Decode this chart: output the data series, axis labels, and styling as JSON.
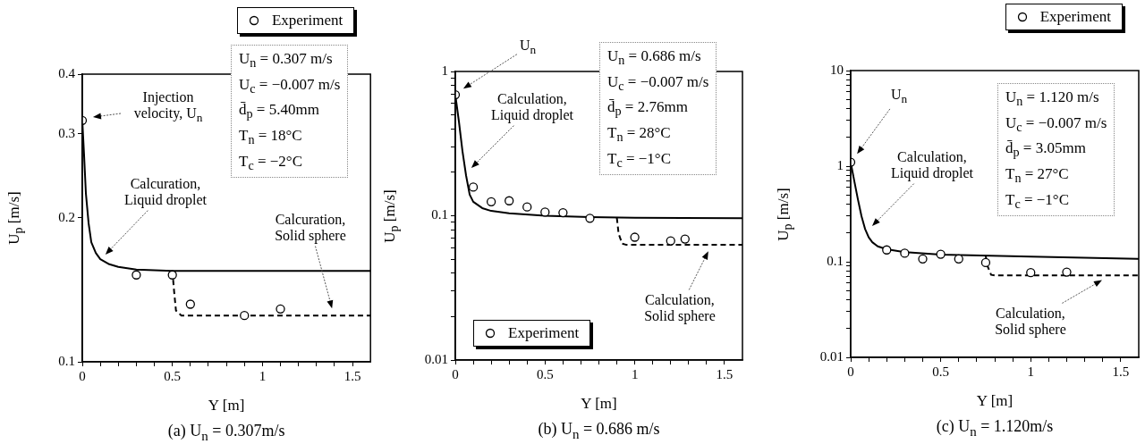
{
  "chart_data": [
    {
      "type": "scatter",
      "title": "(a)    U$_{n}$ = 0.307m/s",
      "xlabel": "Y [m]",
      "ylabel": "U$_{p}$  [m/s]",
      "log": "y",
      "grid": false,
      "legend": "top right",
      "xlim": [
        0,
        1.6
      ],
      "xticks": [
        0,
        {
          "value": 0.1,
          "label": null
        },
        {
          "value": 0.2,
          "label": null
        },
        {
          "value": 0.3,
          "label": null
        },
        {
          "value": 0.4,
          "label": null
        },
        0.5,
        {
          "value": 0.6,
          "label": null
        },
        {
          "value": 0.7,
          "label": null
        },
        {
          "value": 0.8,
          "label": null
        },
        {
          "value": 0.9,
          "label": null
        },
        1,
        {
          "value": 1.1,
          "label": null
        },
        {
          "value": 1.2,
          "label": null
        },
        {
          "value": 1.3,
          "label": null
        },
        {
          "value": 1.4,
          "label": null
        },
        1.5
      ],
      "ylim": [
        0.1,
        0.4
      ],
      "yticks": [
        0.1,
        0.2,
        0.3,
        0.4
      ],
      "series": [
        {
          "name": "Experiment",
          "type": "scatter",
          "marker": "circle",
          "color": "#000000",
          "x": [
            0,
            0.3,
            0.5,
            0.6,
            0.9,
            1.1
          ],
          "values": [
            0.32,
            0.152,
            0.152,
            0.132,
            0.125,
            0.129
          ]
        },
        {
          "type": "line",
          "color": "#000000",
          "line_style": "solid",
          "x": [
            0,
            0.01,
            0.02,
            0.035,
            0.05,
            0.075,
            0.1,
            0.15,
            0.2,
            0.3,
            0.5,
            0.8,
            1.6
          ],
          "values": [
            0.32,
            0.27,
            0.225,
            0.195,
            0.178,
            0.169,
            0.164,
            0.16,
            0.158,
            0.156,
            0.155,
            0.155,
            0.155
          ]
        },
        {
          "type": "line",
          "color": "#000000",
          "line_style": "dashed",
          "x": [
            0.5,
            0.51,
            0.52,
            0.55,
            0.7,
            1.6
          ],
          "values": [
            0.155,
            0.14,
            0.128,
            0.125,
            0.125,
            0.125
          ]
        }
      ],
      "annotations": [
        "Injection velocity, U$_{n}$",
        "Calcuration, Liquid droplet",
        "Calcuration, Solid sphere",
        "U$_{n}$ = 0.307 m/s",
        "U$_{c}$ = −0.007 m/s",
        "d̄$_{p}$ = 5.40mm",
        "T$_{n}$ = 18°C",
        "T$_{c}$ = −2°C"
      ]
    },
    {
      "type": "scatter",
      "title": "(b)    U$_{n}$ = 0.686 m/s",
      "xlabel": "Y [m]",
      "ylabel": "U$_{p}$  [m/s]",
      "log": "y",
      "grid": false,
      "legend": "bottom left",
      "xlim": [
        0,
        1.6
      ],
      "xticks": [
        0,
        {
          "value": 0.1,
          "label": null
        },
        {
          "value": 0.2,
          "label": null
        },
        {
          "value": 0.3,
          "label": null
        },
        {
          "value": 0.4,
          "label": null
        },
        0.5,
        {
          "value": 0.6,
          "label": null
        },
        {
          "value": 0.7,
          "label": null
        },
        {
          "value": 0.8,
          "label": null
        },
        {
          "value": 0.9,
          "label": null
        },
        1,
        {
          "value": 1.1,
          "label": null
        },
        {
          "value": 1.2,
          "label": null
        },
        {
          "value": 1.3,
          "label": null
        },
        {
          "value": 1.4,
          "label": null
        },
        1.5
      ],
      "ylim": [
        0.01,
        1
      ],
      "yticks": [
        0.01,
        {
          "value": 0.02,
          "label": null
        },
        {
          "value": 0.03,
          "label": null
        },
        {
          "value": 0.04,
          "label": null
        },
        {
          "value": 0.05,
          "label": null
        },
        {
          "value": 0.06,
          "label": null
        },
        {
          "value": 0.07,
          "label": null
        },
        {
          "value": 0.08,
          "label": null
        },
        {
          "value": 0.09,
          "label": null
        },
        0.1,
        {
          "value": 0.2,
          "label": null
        },
        {
          "value": 0.3,
          "label": null
        },
        {
          "value": 0.4,
          "label": null
        },
        {
          "value": 0.5,
          "label": null
        },
        {
          "value": 0.6,
          "label": null
        },
        {
          "value": 0.7,
          "label": null
        },
        {
          "value": 0.8,
          "label": null
        },
        {
          "value": 0.9,
          "label": null
        },
        1
      ],
      "series": [
        {
          "name": "Experiment",
          "type": "scatter",
          "marker": "circle",
          "color": "#000000",
          "x": [
            0,
            0.1,
            0.2,
            0.3,
            0.4,
            0.5,
            0.6,
            0.75,
            1.0,
            1.2,
            1.28
          ],
          "values": [
            0.69,
            0.158,
            0.125,
            0.127,
            0.115,
            0.106,
            0.105,
            0.096,
            0.071,
            0.067,
            0.069
          ]
        },
        {
          "type": "line",
          "color": "#000000",
          "line_style": "solid",
          "x": [
            0,
            0.02,
            0.04,
            0.06,
            0.08,
            0.1,
            0.15,
            0.2,
            0.3,
            0.5,
            0.75,
            1.0,
            1.6
          ],
          "values": [
            0.69,
            0.45,
            0.28,
            0.19,
            0.14,
            0.125,
            0.113,
            0.108,
            0.104,
            0.1,
            0.098,
            0.097,
            0.096
          ]
        },
        {
          "type": "line",
          "color": "#000000",
          "line_style": "dashed",
          "x": [
            0.9,
            0.91,
            0.93,
            0.95,
            1.2,
            1.6
          ],
          "values": [
            0.097,
            0.075,
            0.064,
            0.063,
            0.063,
            0.063
          ]
        }
      ],
      "annotations": [
        "U$_{n}$",
        "Calculation, Liquid droplet",
        "Calculation, Solid sphere",
        "U$_{n}$ = 0.686 m/s",
        "U$_{c}$ = −0.007 m/s",
        "d̄$_{p}$ = 2.76mm",
        "T$_{n}$ = 28°C",
        "T$_{c}$ = −1°C"
      ]
    },
    {
      "type": "scatter",
      "title": "(c)    U$_{n}$ = 1.120m/s",
      "xlabel": "Y [m]",
      "ylabel": "U$_{p}$  [m/s]",
      "log": "y",
      "grid": false,
      "legend": "top right",
      "xlim": [
        0,
        1.6
      ],
      "xticks": [
        0,
        {
          "value": 0.1,
          "label": null
        },
        {
          "value": 0.2,
          "label": null
        },
        {
          "value": 0.3,
          "label": null
        },
        {
          "value": 0.4,
          "label": null
        },
        0.5,
        {
          "value": 0.6,
          "label": null
        },
        {
          "value": 0.7,
          "label": null
        },
        {
          "value": 0.8,
          "label": null
        },
        {
          "value": 0.9,
          "label": null
        },
        1,
        {
          "value": 1.1,
          "label": null
        },
        {
          "value": 1.2,
          "label": null
        },
        {
          "value": 1.3,
          "label": null
        },
        {
          "value": 1.4,
          "label": null
        },
        1.5
      ],
      "ylim": [
        0.01,
        10
      ],
      "yticks": [
        0.01,
        {
          "value": 0.02,
          "label": null
        },
        {
          "value": 0.03,
          "label": null
        },
        {
          "value": 0.04,
          "label": null
        },
        {
          "value": 0.05,
          "label": null
        },
        {
          "value": 0.06,
          "label": null
        },
        {
          "value": 0.07,
          "label": null
        },
        {
          "value": 0.08,
          "label": null
        },
        {
          "value": 0.09,
          "label": null
        },
        0.1,
        {
          "value": 0.2,
          "label": null
        },
        {
          "value": 0.3,
          "label": null
        },
        {
          "value": 0.4,
          "label": null
        },
        {
          "value": 0.5,
          "label": null
        },
        {
          "value": 0.6,
          "label": null
        },
        {
          "value": 0.7,
          "label": null
        },
        {
          "value": 0.8,
          "label": null
        },
        {
          "value": 0.9,
          "label": null
        },
        1,
        {
          "value": 2,
          "label": null
        },
        {
          "value": 3,
          "label": null
        },
        {
          "value": 4,
          "label": null
        },
        {
          "value": 5,
          "label": null
        },
        {
          "value": 6,
          "label": null
        },
        {
          "value": 7,
          "label": null
        },
        {
          "value": 8,
          "label": null
        },
        {
          "value": 9,
          "label": null
        },
        10
      ],
      "series": [
        {
          "name": "Experiment",
          "type": "scatter",
          "marker": "circle",
          "color": "#000000",
          "x": [
            0,
            0.2,
            0.3,
            0.4,
            0.5,
            0.6,
            0.75,
            1.0,
            1.2
          ],
          "values": [
            1.1,
            0.133,
            0.123,
            0.107,
            0.12,
            0.107,
            0.098,
            0.077,
            0.078
          ]
        },
        {
          "type": "line",
          "color": "#000000",
          "line_style": "solid",
          "x": [
            0,
            0.02,
            0.04,
            0.06,
            0.08,
            0.1,
            0.12,
            0.15,
            0.2,
            0.3,
            0.5,
            1.0,
            1.6
          ],
          "values": [
            1.1,
            0.7,
            0.45,
            0.3,
            0.22,
            0.18,
            0.16,
            0.145,
            0.135,
            0.126,
            0.119,
            0.113,
            0.107
          ]
        },
        {
          "type": "line",
          "color": "#000000",
          "line_style": "dashed",
          "x": [
            0.75,
            0.76,
            0.78,
            0.8,
            1.2,
            1.6
          ],
          "values": [
            0.115,
            0.09,
            0.073,
            0.072,
            0.072,
            0.072
          ]
        }
      ],
      "annotations": [
        "U$_{n}$",
        "Calculation, Liquid droplet",
        "Calculation, Solid sphere",
        "U$_{n}$ = 1.120 m/s",
        "U$_{c}$ = −0.007 m/s",
        "d̄$_{p}$ = 3.05mm",
        "T$_{n}$ = 27°C",
        "T$_{c}$ = −1°C"
      ]
    }
  ]
}
